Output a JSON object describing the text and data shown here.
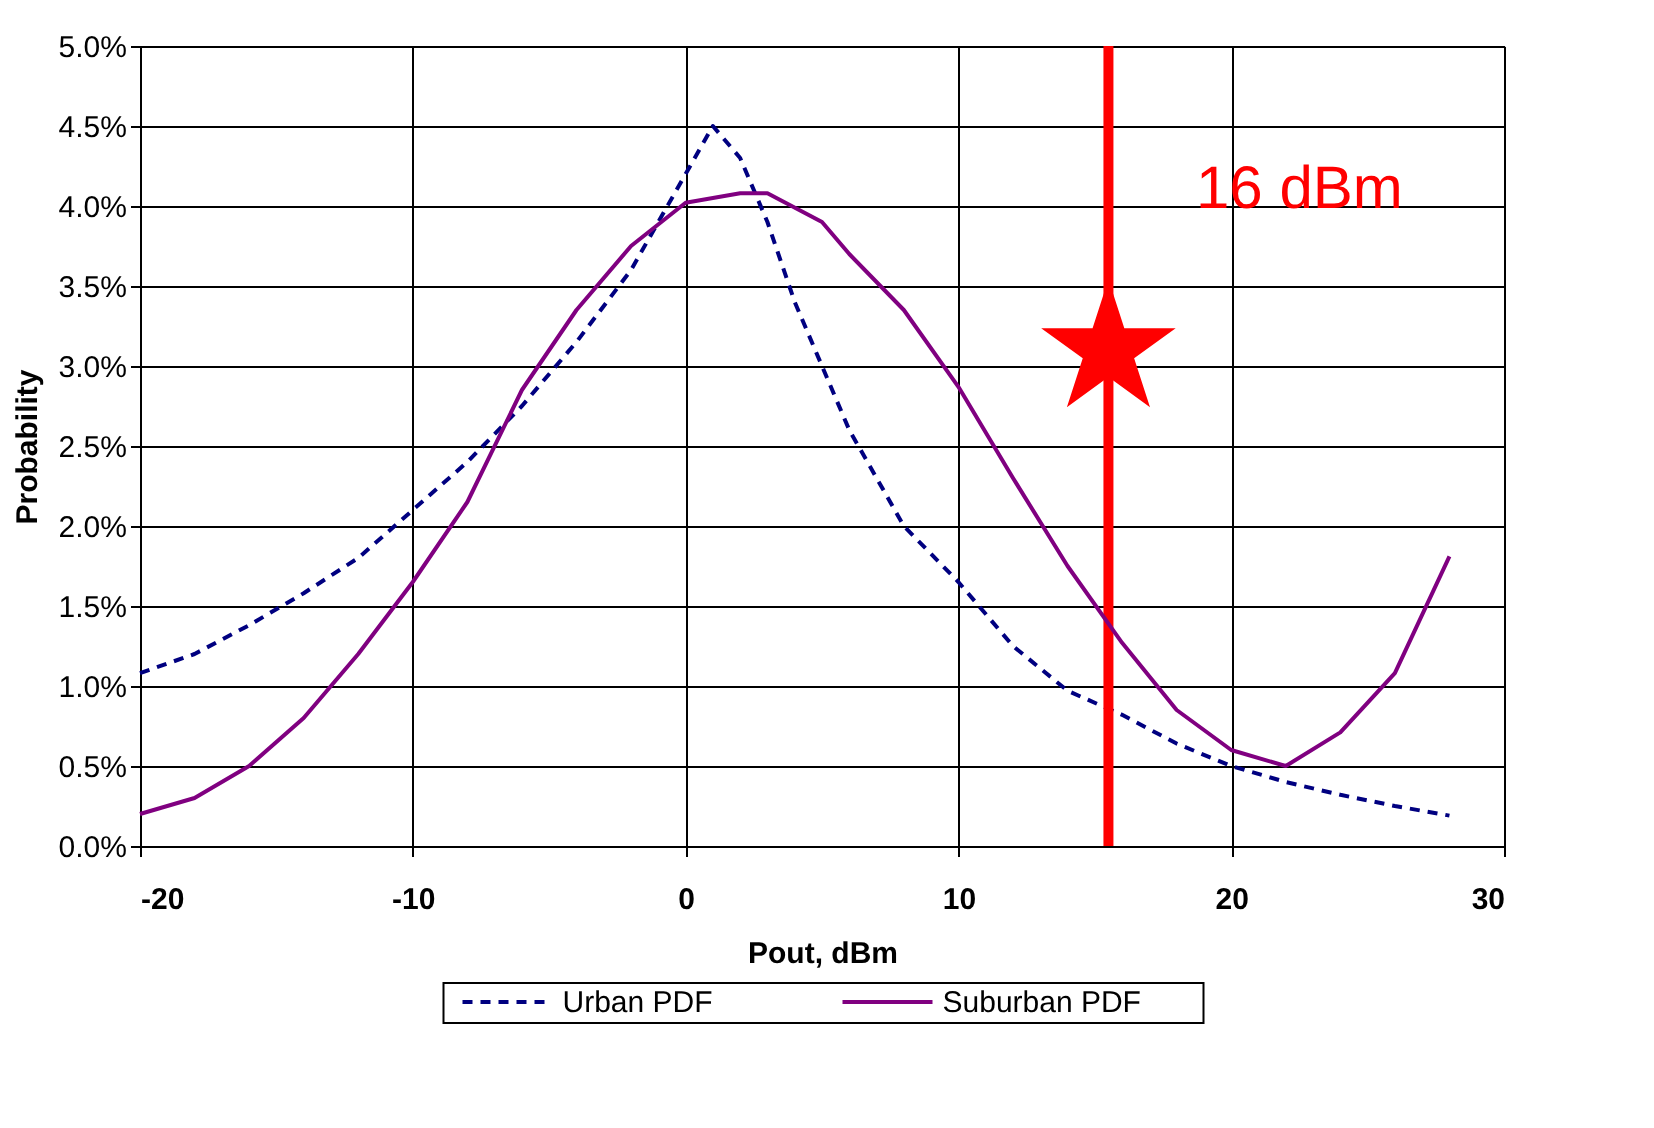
{
  "chart_data": {
    "type": "line",
    "xlabel": "Pout, dBm",
    "ylabel": "Probability",
    "xlim": [
      -20,
      30
    ],
    "xticks": [
      -20,
      -10,
      0,
      10,
      20,
      30
    ],
    "ylim": [
      0,
      5
    ],
    "yticks": [
      {
        "value": 0,
        "label": "0.0%"
      },
      {
        "value": 0.5,
        "label": "0.5%"
      },
      {
        "value": 1,
        "label": "1.0%"
      },
      {
        "value": 1.5,
        "label": "1.5%"
      },
      {
        "value": 2,
        "label": "2.0%"
      },
      {
        "value": 2.5,
        "label": "2.5%"
      },
      {
        "value": 3,
        "label": "3.0%"
      },
      {
        "value": 3.5,
        "label": "3.5%"
      },
      {
        "value": 4,
        "label": "4.0%"
      },
      {
        "value": 4.5,
        "label": "4.5%"
      },
      {
        "value": 5,
        "label": "5.0%"
      }
    ],
    "grid": true,
    "legend": "bottom",
    "series": [
      {
        "name": "Urban PDF",
        "color": "#000080",
        "line_style": "dashed",
        "x": [
          -20,
          -18,
          -16,
          -14,
          -12,
          -10,
          -8,
          -6,
          -4,
          -2,
          0,
          1,
          2,
          3,
          4,
          6,
          8,
          10,
          12,
          14,
          16,
          18,
          20,
          22,
          24,
          26,
          28
        ],
        "values": [
          1.08,
          1.2,
          1.38,
          1.58,
          1.8,
          2.1,
          2.4,
          2.75,
          3.15,
          3.6,
          4.2,
          4.5,
          4.3,
          3.9,
          3.4,
          2.6,
          2.0,
          1.65,
          1.25,
          0.97,
          0.82,
          0.64,
          0.5,
          0.4,
          0.32,
          0.25,
          0.19
        ]
      },
      {
        "name": "Suburban PDF",
        "color": "#800080",
        "line_style": "solid",
        "x": [
          -20,
          -18,
          -16,
          -14,
          -12,
          -10,
          -8,
          -6,
          -4,
          -2,
          0,
          2,
          3,
          5,
          6,
          8,
          10,
          12,
          14,
          16,
          18,
          20,
          22,
          24,
          26,
          28
        ],
        "values": [
          0.2,
          0.3,
          0.5,
          0.8,
          1.2,
          1.65,
          2.15,
          2.85,
          3.35,
          3.75,
          4.02,
          4.08,
          4.08,
          3.9,
          3.7,
          3.35,
          2.87,
          2.3,
          1.75,
          1.27,
          0.85,
          0.6,
          0.5,
          0.71,
          1.08,
          1.81
        ]
      },
      {
        "type": "scatter",
        "marker": "star",
        "color": "#ff0000",
        "x": [
          15.5
        ],
        "values": [
          3.1
        ]
      }
    ],
    "ref_lines": [
      {
        "axis": "x",
        "value": 15.5,
        "color": "#ff0000",
        "line_style": "solid"
      }
    ],
    "annotations": [
      "16 dBm"
    ]
  }
}
